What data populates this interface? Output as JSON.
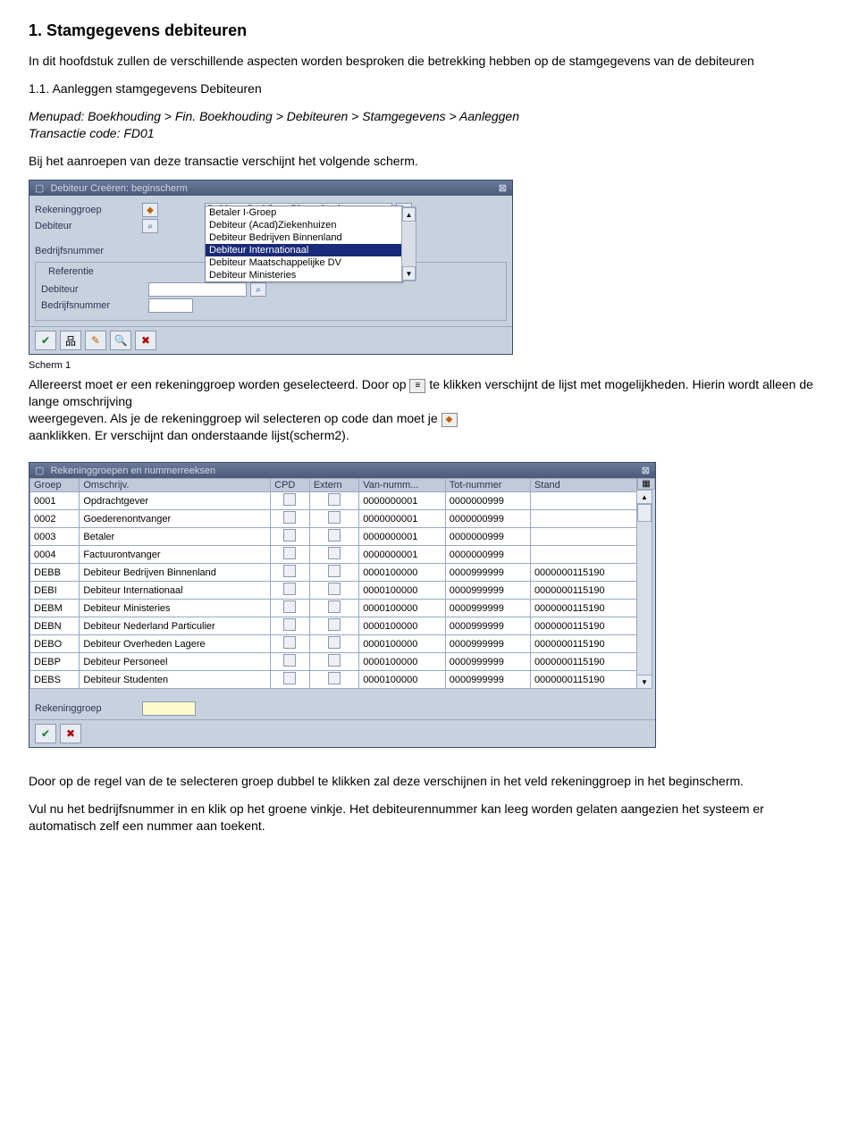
{
  "doc": {
    "heading": "1.  Stamgegevens debiteuren",
    "intro": "In dit hoofdstuk zullen de verschillende aspecten worden besproken die betrekking hebben op de stamgegevens van de debiteuren",
    "sub1": "1.1. Aanleggen stamgegevens Debiteuren",
    "menupad": "Menupad: Boekhouding > Fin. Boekhouding > Debiteuren > Stamgegevens > Aanleggen",
    "transcode": "Transactie code: FD01",
    "line_before_scr1": "Bij het aanroepen van deze transactie verschijnt het volgende scherm.",
    "scr1_caption": "Scherm 1",
    "after_scr1_a": "Allereerst moet er een rekeninggroep  worden geselecteerd. Door op ",
    "after_scr1_b": " te klikken verschijnt de lijst met mogelijkheden. Hierin wordt alleen de lange omschrijving",
    "after_scr1_c": "weergegeven. Als je de rekeninggroep wil selecteren op code dan moet je  ",
    "after_scr1_d": " aanklikken. Er verschijnt dan onderstaande lijst(scherm2).",
    "after_scr2_a": "Door op de regel van de te selecteren groep dubbel te klikken zal deze verschijnen in het veld rekeninggroep in het beginscherm.",
    "after_scr2_b": "Vul nu het bedrijfsnummer in en  klik op het groene vinkje. Het debiteurennummer kan leeg worden gelaten aangezien het systeem er automatisch zelf een nummer aan toekent."
  },
  "scr1": {
    "title": "Debiteur Creëren: beginscherm",
    "labels": {
      "rekeninggroep": "Rekeninggroep",
      "debiteur": "Debiteur",
      "bedrijfsnummer": "Bedrijfsnummer",
      "referentie": "Referentie"
    },
    "dropdown_selected": "Debiteur Bedrijven Binnenland",
    "dropdown_items": [
      "Betaler I-Groep",
      "Debiteur (Acad)Ziekenhuizen",
      "Debiteur Bedrijven Binnenland",
      "Debiteur Internationaal",
      "Debiteur Maatschappelijke DV",
      "Debiteur Ministeries"
    ],
    "dropdown_selected_index": 3
  },
  "scr2": {
    "title": "Rekeninggroepen en nummerreeksen",
    "columns": [
      "Groep",
      "Omschrijv.",
      "CPD",
      "Extern",
      "Van-numm...",
      "Tot-nummer",
      "Stand"
    ],
    "rows": [
      [
        "0001",
        "Opdrachtgever",
        "",
        "",
        "0000000001",
        "0000000999",
        ""
      ],
      [
        "0002",
        "Goederenontvanger",
        "",
        "",
        "0000000001",
        "0000000999",
        ""
      ],
      [
        "0003",
        "Betaler",
        "",
        "",
        "0000000001",
        "0000000999",
        ""
      ],
      [
        "0004",
        "Factuurontvanger",
        "",
        "",
        "0000000001",
        "0000000999",
        ""
      ],
      [
        "DEBB",
        "Debiteur Bedrijven Binnenland",
        "",
        "",
        "0000100000",
        "0000999999",
        "0000000115190"
      ],
      [
        "DEBI",
        "Debiteur Internationaal",
        "",
        "",
        "0000100000",
        "0000999999",
        "0000000115190"
      ],
      [
        "DEBM",
        "Debiteur Ministeries",
        "",
        "",
        "0000100000",
        "0000999999",
        "0000000115190"
      ],
      [
        "DEBN",
        "Debiteur Nederland Particulier",
        "",
        "",
        "0000100000",
        "0000999999",
        "0000000115190"
      ],
      [
        "DEBO",
        "Debiteur Overheden Lagere",
        "",
        "",
        "0000100000",
        "0000999999",
        "0000000115190"
      ],
      [
        "DEBP",
        "Debiteur Personeel",
        "",
        "",
        "0000100000",
        "0000999999",
        "0000000115190"
      ],
      [
        "DEBS",
        "Debiteur Studenten",
        "",
        "",
        "0000100000",
        "0000999999",
        "0000000115190"
      ]
    ],
    "footer_label": "Rekeninggroep"
  },
  "colors": {
    "sap_bg": "#c8d2df",
    "sap_titlebar_from": "#6a7a98",
    "sap_titlebar_to": "#4a5a78",
    "sap_border": "#9aa8c0",
    "sap_header_bg": "#c0cad8",
    "sap_selected_bg": "#1a2a7a"
  }
}
